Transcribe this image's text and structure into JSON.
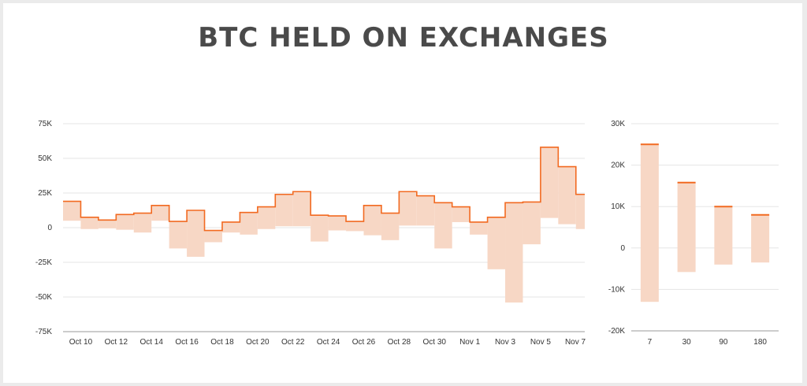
{
  "title": "BTC HELD ON EXCHANGES",
  "colors": {
    "line": "#f26a21",
    "fill": "#f7d7c5",
    "grid": "#e5e5e5"
  },
  "chart_data": [
    {
      "type": "area",
      "title": "BTC HELD ON EXCHANGES",
      "ylim": [
        -75000,
        75000
      ],
      "yticks": [
        75000,
        50000,
        25000,
        0,
        -25000,
        -50000,
        -75000
      ],
      "ytick_labels": [
        "75K",
        "50K",
        "25K",
        "0",
        "-25K",
        "-50K",
        "-75K"
      ],
      "xtick_labels": [
        "Oct 10",
        "Oct 12",
        "Oct 14",
        "Oct 16",
        "Oct 18",
        "Oct 20",
        "Oct 22",
        "Oct 24",
        "Oct 26",
        "Oct 28",
        "Oct 30",
        "Nov 1",
        "Nov 3",
        "Nov 5",
        "Nov 7"
      ],
      "dates": [
        "Oct 9",
        "Oct 10",
        "Oct 11",
        "Oct 12",
        "Oct 13",
        "Oct 14",
        "Oct 15",
        "Oct 16",
        "Oct 17",
        "Oct 18",
        "Oct 19",
        "Oct 20",
        "Oct 21",
        "Oct 22",
        "Oct 23",
        "Oct 24",
        "Oct 25",
        "Oct 26",
        "Oct 27",
        "Oct 28",
        "Oct 29",
        "Oct 30",
        "Oct 31",
        "Nov 1",
        "Nov 2",
        "Nov 3",
        "Nov 4",
        "Nov 5",
        "Nov 6",
        "Nov 7"
      ],
      "series": [
        {
          "values": [
            19000,
            7500,
            5500,
            9500,
            10500,
            16000,
            4500,
            12500,
            -2000,
            4000,
            11000,
            15000,
            24000,
            26000,
            9000,
            8500,
            4500,
            16000,
            10500,
            26000,
            23000,
            18000,
            15000,
            4000,
            7500,
            18000,
            18500,
            58000,
            44000,
            24000
          ]
        },
        {
          "values": [
            5000,
            -1000,
            -500,
            -1500,
            -3500,
            5000,
            -15000,
            -21000,
            -10500,
            -3500,
            -5000,
            -1000,
            1000,
            1000,
            -10000,
            -2000,
            -2500,
            -5500,
            -9000,
            1500,
            1500,
            -15000,
            4000,
            -5000,
            -30000,
            -54000,
            -12000,
            7000,
            2500,
            -1000
          ]
        }
      ]
    },
    {
      "type": "bar",
      "categories": [
        "7",
        "30",
        "90",
        "180"
      ],
      "ylim": [
        -20000,
        30000
      ],
      "yticks": [
        30000,
        20000,
        10000,
        0,
        -10000,
        -20000
      ],
      "ytick_labels": [
        "30K",
        "20K",
        "10K",
        "0",
        "-10K",
        "-20K"
      ],
      "series": [
        {
          "values": [
            25000,
            15800,
            10000,
            8000
          ]
        },
        {
          "values": [
            -13000,
            -5800,
            -4000,
            -3500
          ]
        }
      ]
    }
  ]
}
